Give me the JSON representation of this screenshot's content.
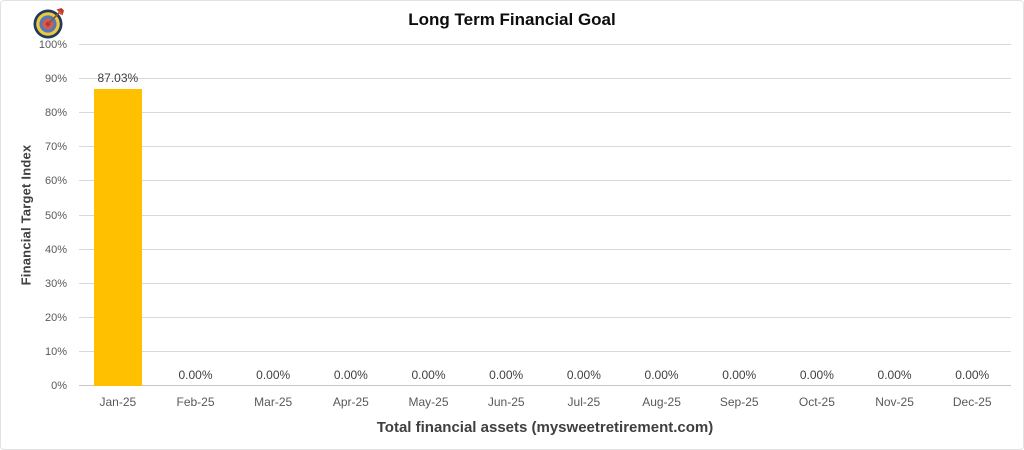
{
  "header": {
    "title": "Long Term Financial Goal",
    "icon": "dartboard-icon"
  },
  "chart_data": {
    "type": "bar",
    "title": "Long Term Financial Goal",
    "xlabel": "Total financial assets (mysweetretirement.com)",
    "ylabel": "Financial Target Index",
    "categories": [
      "Jan-25",
      "Feb-25",
      "Mar-25",
      "Apr-25",
      "May-25",
      "Jun-25",
      "Jul-25",
      "Aug-25",
      "Sep-25",
      "Oct-25",
      "Nov-25",
      "Dec-25"
    ],
    "values": [
      87.03,
      0,
      0,
      0,
      0,
      0,
      0,
      0,
      0,
      0,
      0,
      0
    ],
    "value_labels": [
      "87.03%",
      "0.00%",
      "0.00%",
      "0.00%",
      "0.00%",
      "0.00%",
      "0.00%",
      "0.00%",
      "0.00%",
      "0.00%",
      "0.00%",
      "0.00%"
    ],
    "ylim": [
      0,
      100
    ],
    "y_tick_step": 10,
    "y_tick_suffix": "%",
    "grid": "horizontal",
    "legend": "none",
    "bar_color": "#FFC000",
    "gridline_color": "#D9D9D9",
    "axis_line_color": "#C6C6C6",
    "tick_text_color": "#595959",
    "data_label_color": "#404040"
  }
}
